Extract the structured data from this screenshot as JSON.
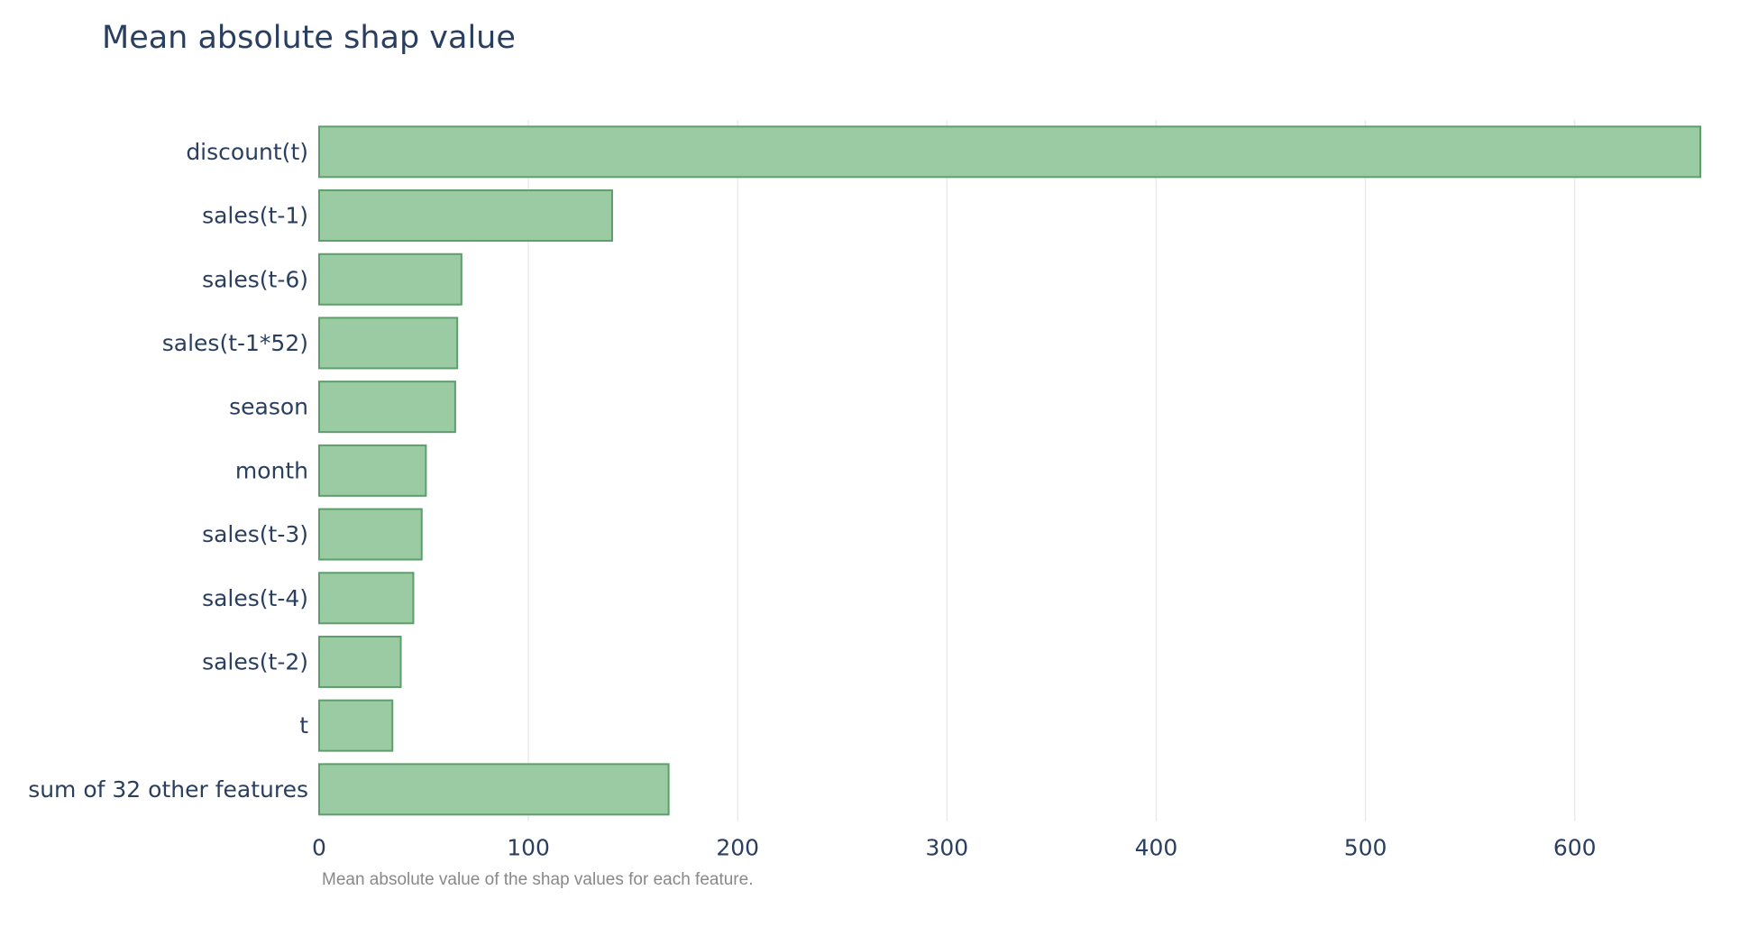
{
  "chart_data": {
    "type": "bar",
    "orientation": "horizontal",
    "title": "Mean absolute shap value",
    "caption": "Mean absolute value of the shap values for each feature.",
    "xlabel": "",
    "ylabel": "",
    "categories": [
      "discount(t)",
      "sales(t-1)",
      "sales(t-6)",
      "sales(t-1*52)",
      "season",
      "month",
      "sales(t-3)",
      "sales(t-4)",
      "sales(t-2)",
      "t",
      "sum of 32 other features"
    ],
    "values": [
      660,
      140,
      68,
      66,
      65,
      51,
      49,
      45,
      39,
      35,
      167
    ],
    "xlim": [
      0,
      660
    ],
    "xticks": [
      0,
      100,
      200,
      300,
      400,
      500,
      600
    ],
    "grid": true,
    "colors": {
      "bar_fill": "#9bcba2",
      "bar_stroke": "#5d9e6b",
      "grid": "#e8ebee",
      "text": "#2a3f5f"
    }
  }
}
